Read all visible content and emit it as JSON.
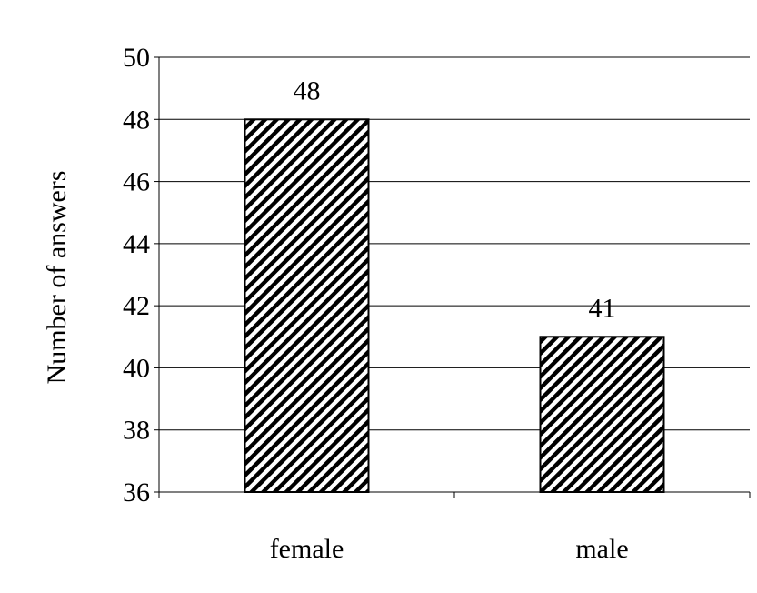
{
  "chart_data": {
    "type": "bar",
    "categories": [
      "female",
      "male"
    ],
    "values": [
      48,
      41
    ],
    "data_labels": [
      "48",
      "41"
    ],
    "title": "",
    "xlabel": "",
    "ylabel": "Number of answers",
    "ylim": [
      36,
      50
    ],
    "yticks": [
      36,
      38,
      40,
      42,
      44,
      46,
      48,
      50
    ],
    "ytick_labels": [
      "36",
      "38",
      "40",
      "42",
      "44",
      "46",
      "48",
      "50"
    ],
    "grid": true,
    "legend": "none",
    "bar_fill": "diagonal-hatch",
    "colors": {
      "bar_stroke": "#000000",
      "hatch": "#000000",
      "grid": "#000000",
      "background": "#ffffff"
    }
  }
}
